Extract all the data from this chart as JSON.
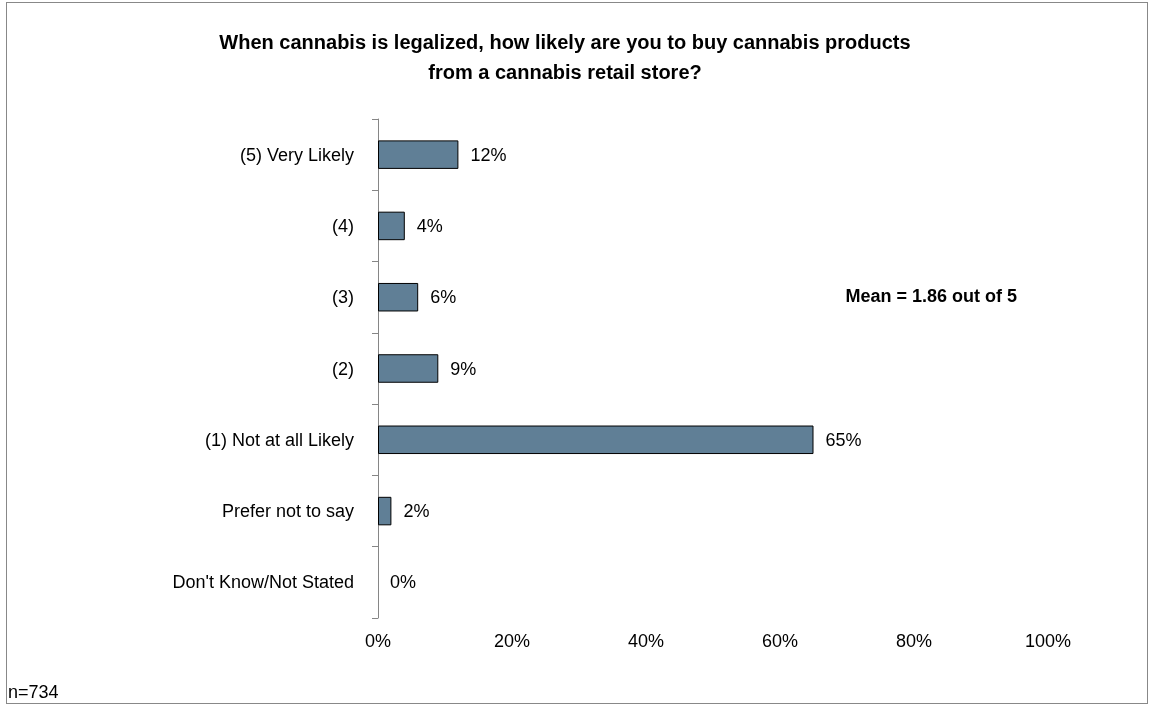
{
  "chart_data": {
    "type": "bar",
    "orientation": "horizontal",
    "title": "When cannabis is legalized, how likely are you to buy cannabis products\nfrom a cannabis retail store?",
    "categories": [
      "(5) Very Likely",
      "(4)",
      "(3)",
      "(2)",
      "(1) Not at all Likely",
      "Prefer not to say",
      "Don't Know/Not Stated"
    ],
    "values": [
      12,
      4,
      6,
      9,
      65,
      2,
      0
    ],
    "value_labels": [
      "12%",
      "4%",
      "6%",
      "9%",
      "65%",
      "2%",
      "0%"
    ],
    "color": "#607f96",
    "xlim": [
      0,
      100
    ],
    "xticks": [
      {
        "value": 0,
        "label": "0%"
      },
      {
        "value": 20,
        "label": "20%"
      },
      {
        "value": 40,
        "label": "40%"
      },
      {
        "value": 60,
        "label": "60%"
      },
      {
        "value": 80,
        "label": "80%"
      },
      {
        "value": 100,
        "label": "100%"
      }
    ],
    "grid": false,
    "annotations": [
      "Mean = 1.86 out of 5",
      "n=734"
    ]
  }
}
